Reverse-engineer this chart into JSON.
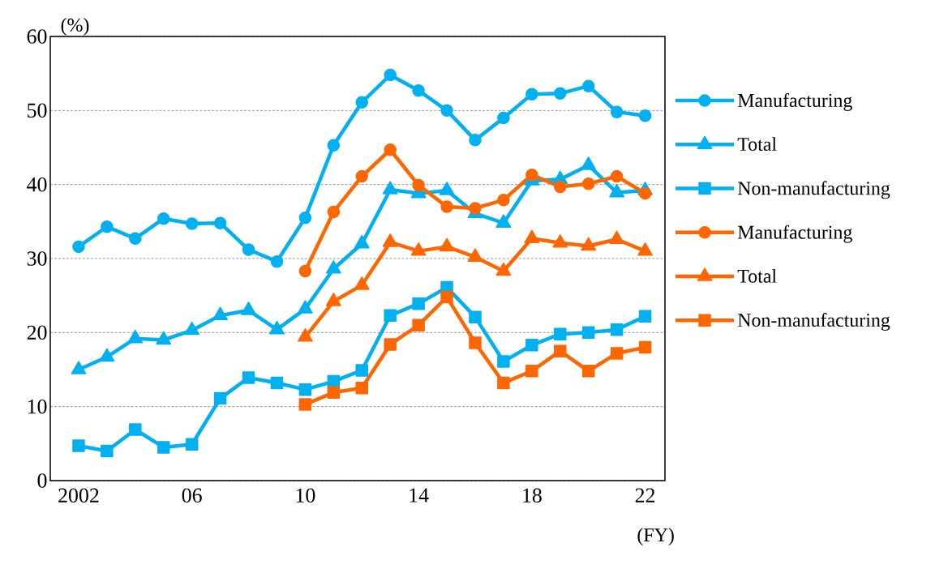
{
  "chart_data": {
    "type": "line",
    "ylabel": "(%)",
    "xlabel": "(FY)",
    "xlim": [
      2001,
      2022.7
    ],
    "ylim": [
      0,
      60
    ],
    "xticks": [
      2002,
      {
        "value": 2006,
        "label": "06"
      },
      {
        "value": 2010,
        "label": "10"
      },
      {
        "value": 2014,
        "label": "14"
      },
      {
        "value": 2018,
        "label": "18"
      },
      {
        "value": 2022,
        "label": "22"
      }
    ],
    "yticks": [
      0,
      10,
      20,
      30,
      40,
      50,
      60
    ],
    "grid": "y",
    "legend": "right",
    "line_style": "solid",
    "series": [
      {
        "name": "Manufacturing",
        "color": "#00b0f0",
        "marker": "circle",
        "x": [
          2002,
          2003,
          2004,
          2005,
          2006,
          2007,
          2008,
          2009,
          2010,
          2011,
          2012,
          2013,
          2014,
          2015,
          2016,
          2017,
          2018,
          2019,
          2020,
          2021,
          2022
        ],
        "values": [
          31.6,
          34.3,
          32.7,
          35.4,
          34.7,
          34.8,
          31.2,
          29.6,
          35.5,
          45.3,
          51.1,
          54.8,
          52.7,
          50.0,
          46.0,
          49.0,
          52.2,
          52.3,
          53.3,
          49.8,
          49.3
        ]
      },
      {
        "name": "Total",
        "color": "#00b0f0",
        "marker": "triangle",
        "x": [
          2002,
          2003,
          2004,
          2005,
          2006,
          2007,
          2008,
          2009,
          2010,
          2011,
          2012,
          2013,
          2014,
          2015,
          2016,
          2017,
          2018,
          2019,
          2020,
          2021,
          2022
        ],
        "values": [
          15.0,
          16.7,
          19.2,
          19.0,
          20.3,
          22.3,
          23.0,
          20.4,
          23.2,
          28.6,
          32.0,
          39.3,
          38.8,
          39.2,
          36.1,
          34.8,
          40.5,
          40.7,
          42.6,
          38.9,
          39.2
        ]
      },
      {
        "name": "Non-manufacturing",
        "color": "#00b0f0",
        "marker": "square",
        "x": [
          2002,
          2003,
          2004,
          2005,
          2006,
          2007,
          2008,
          2009,
          2010,
          2011,
          2012,
          2013,
          2014,
          2015,
          2016,
          2017,
          2018,
          2019,
          2020,
          2021,
          2022
        ],
        "values": [
          4.7,
          4.0,
          6.9,
          4.5,
          4.9,
          11.1,
          13.9,
          13.2,
          12.3,
          13.4,
          14.9,
          22.3,
          23.9,
          26.1,
          22.1,
          16.1,
          18.3,
          19.8,
          20.0,
          20.4,
          22.2
        ]
      },
      {
        "name": "Manufacturing",
        "color": "#ff6600",
        "marker": "circle",
        "x": [
          2010,
          2011,
          2012,
          2013,
          2014,
          2015,
          2016,
          2017,
          2018,
          2019,
          2020,
          2021,
          2022
        ],
        "values": [
          28.3,
          36.3,
          41.1,
          44.7,
          39.9,
          37.0,
          36.8,
          37.9,
          41.3,
          39.7,
          40.1,
          41.1,
          38.8
        ]
      },
      {
        "name": "Total",
        "color": "#ff6600",
        "marker": "triangle",
        "x": [
          2010,
          2011,
          2012,
          2013,
          2014,
          2015,
          2016,
          2017,
          2018,
          2019,
          2020,
          2021,
          2022
        ],
        "values": [
          19.4,
          24.2,
          26.4,
          32.2,
          31.0,
          31.6,
          30.2,
          28.3,
          32.7,
          32.1,
          31.7,
          32.6,
          31.0
        ]
      },
      {
        "name": "Non-manufacturing",
        "color": "#ff6600",
        "marker": "square",
        "x": [
          2010,
          2011,
          2012,
          2013,
          2014,
          2015,
          2016,
          2017,
          2018,
          2019,
          2020,
          2021,
          2022
        ],
        "values": [
          10.3,
          11.9,
          12.5,
          18.4,
          21.0,
          24.8,
          18.6,
          13.2,
          14.8,
          17.5,
          14.8,
          17.2,
          18.0
        ]
      }
    ]
  }
}
